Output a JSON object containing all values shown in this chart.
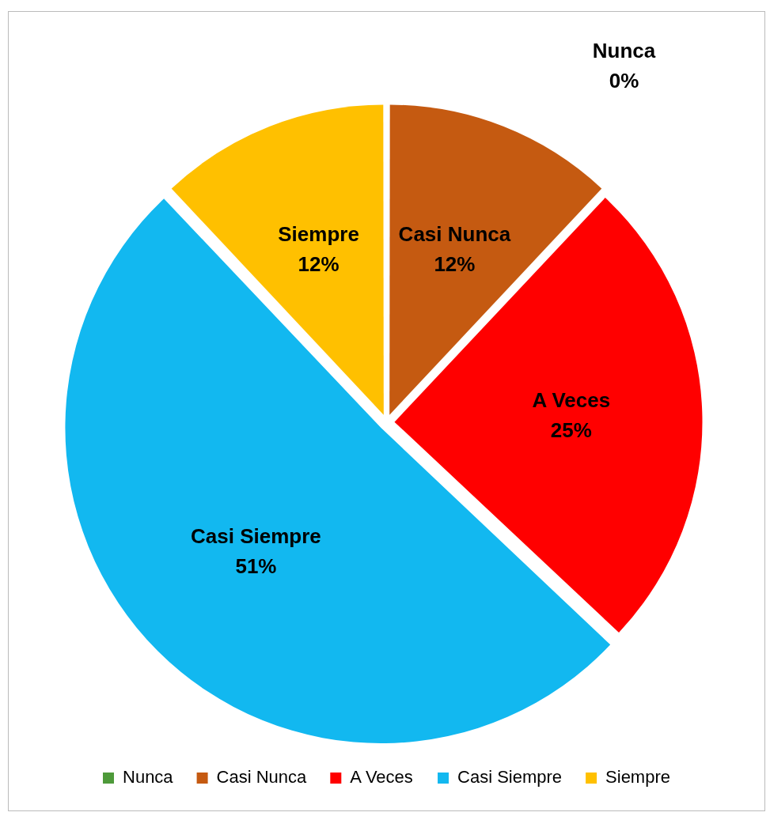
{
  "chart_data": {
    "type": "pie",
    "categories": [
      "Nunca",
      "Casi Nunca",
      "A Veces",
      "Casi Siempre",
      "Siempre"
    ],
    "values": [
      0,
      12,
      25,
      51,
      12
    ],
    "value_labels": [
      "0%",
      "12%",
      "25%",
      "51%",
      "12%"
    ],
    "colors": [
      "#4e9a3a",
      "#c55a11",
      "#ff0000",
      "#12b8f0",
      "#ffc000"
    ],
    "legend": "bottom"
  }
}
